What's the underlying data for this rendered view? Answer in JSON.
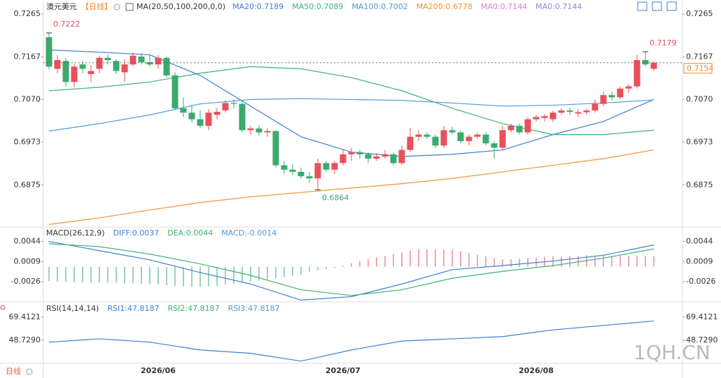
{
  "header": {
    "symbol": "澳元美元",
    "period": "【日线】",
    "indicator": "MA(20,50,100,200,0,0)",
    "extra_legend": [
      {
        "name": "MA0:0.7144",
        "color": "#e07bd0"
      },
      {
        "name": "MA0:0.7144",
        "color": "#9b7fe0"
      }
    ]
  },
  "footer": {
    "period": "日线",
    "watermark": "1QH.CN"
  },
  "xlabels": [
    {
      "index": 13,
      "label": "2026/06"
    },
    {
      "index": 35,
      "label": "2026/07"
    },
    {
      "index": 58,
      "label": "2026/08"
    }
  ],
  "chart_data": [
    {
      "type": "candlestick",
      "up_color": "#e8505b",
      "down_color": "#3aaa6e",
      "ylim": [
        0.7297,
        0.6779
      ],
      "yticks": [
        0.7265,
        0.7167,
        {
          "value": 0.707,
          "label": "0.7070"
        },
        0.6973,
        0.6875
      ],
      "candles": [
        [
          0.7212,
          0.7222,
          0.7138,
          0.7145
        ],
        [
          0.714,
          0.7172,
          0.713,
          0.716
        ],
        [
          0.7158,
          0.7165,
          0.71,
          0.711
        ],
        [
          0.711,
          0.7152,
          0.7098,
          0.7145
        ],
        [
          0.715,
          0.7158,
          0.713,
          0.714
        ],
        [
          0.7128,
          0.7148,
          0.711,
          0.7135
        ],
        [
          0.714,
          0.717,
          0.713,
          0.7165
        ],
        [
          0.7165,
          0.7172,
          0.715,
          0.716
        ],
        [
          0.7158,
          0.7162,
          0.7128,
          0.7135
        ],
        [
          0.7132,
          0.7162,
          0.711,
          0.715
        ],
        [
          0.715,
          0.7178,
          0.7145,
          0.717
        ],
        [
          0.7168,
          0.7175,
          0.715,
          0.7155
        ],
        [
          0.7155,
          0.7172,
          0.7145,
          0.715
        ],
        [
          0.715,
          0.7172,
          0.714,
          0.7165
        ],
        [
          0.7165,
          0.7168,
          0.712,
          0.7125
        ],
        [
          0.7125,
          0.7132,
          0.7045,
          0.705
        ],
        [
          0.705,
          0.7075,
          0.703,
          0.704
        ],
        [
          0.704,
          0.7058,
          0.7018,
          0.7025
        ],
        [
          0.7025,
          0.7045,
          0.7005,
          0.701
        ],
        [
          0.701,
          0.7048,
          0.7,
          0.704
        ],
        [
          0.7035,
          0.7052,
          0.7025,
          0.7042
        ],
        [
          0.7045,
          0.7068,
          0.704,
          0.7062
        ],
        [
          0.7062,
          0.707,
          0.705,
          0.706
        ],
        [
          0.706,
          0.7065,
          0.6995,
          0.7
        ],
        [
          0.7,
          0.701,
          0.699,
          0.7004
        ],
        [
          0.7004,
          0.7012,
          0.6988,
          0.6995
        ],
        [
          0.6995,
          0.7005,
          0.6985,
          0.6998
        ],
        [
          0.6998,
          0.7,
          0.6915,
          0.692
        ],
        [
          0.692,
          0.693,
          0.69,
          0.691
        ],
        [
          0.691,
          0.6922,
          0.6898,
          0.6905
        ],
        [
          0.6905,
          0.6915,
          0.689,
          0.6895
        ],
        [
          0.6895,
          0.6905,
          0.688,
          0.689
        ],
        [
          0.689,
          0.6935,
          0.6864,
          0.6925
        ],
        [
          0.6925,
          0.693,
          0.6905,
          0.691
        ],
        [
          0.691,
          0.693,
          0.69,
          0.6925
        ],
        [
          0.6925,
          0.6955,
          0.692,
          0.6945
        ],
        [
          0.6945,
          0.696,
          0.693,
          0.695
        ],
        [
          0.695,
          0.6955,
          0.6935,
          0.6945
        ],
        [
          0.6945,
          0.695,
          0.6925,
          0.6935
        ],
        [
          0.6935,
          0.6948,
          0.693,
          0.694
        ],
        [
          0.694,
          0.6955,
          0.6935,
          0.6945
        ],
        [
          0.6945,
          0.695,
          0.692,
          0.6925
        ],
        [
          0.6925,
          0.6965,
          0.692,
          0.6955
        ],
        [
          0.6955,
          0.7005,
          0.695,
          0.6985
        ],
        [
          0.6985,
          0.7,
          0.6975,
          0.699
        ],
        [
          0.699,
          0.6995,
          0.698,
          0.6985
        ],
        [
          0.6985,
          0.699,
          0.696,
          0.6965
        ],
        [
          0.6965,
          0.701,
          0.696,
          0.7
        ],
        [
          0.7,
          0.7008,
          0.699,
          0.6995
        ],
        [
          0.6995,
          0.7,
          0.697,
          0.6975
        ],
        [
          0.6975,
          0.699,
          0.6965,
          0.6985
        ],
        [
          0.6985,
          0.6995,
          0.698,
          0.699
        ],
        [
          0.699,
          0.6995,
          0.6965,
          0.697
        ],
        [
          0.697,
          0.6975,
          0.6935,
          0.696
        ],
        [
          0.696,
          0.701,
          0.6955,
          0.7
        ],
        [
          0.7,
          0.7015,
          0.6995,
          0.701
        ],
        [
          0.701,
          0.7015,
          0.699,
          0.6995
        ],
        [
          0.6995,
          0.703,
          0.699,
          0.7025
        ],
        [
          0.7025,
          0.7035,
          0.702,
          0.703
        ],
        [
          0.7028,
          0.7036,
          0.702,
          0.7032
        ],
        [
          0.7025,
          0.7045,
          0.7018,
          0.704
        ],
        [
          0.704,
          0.705,
          0.7035,
          0.7045
        ],
        [
          0.7045,
          0.7052,
          0.7035,
          0.7042
        ],
        [
          0.7038,
          0.7048,
          0.703,
          0.7041
        ],
        [
          0.7041,
          0.705,
          0.7035,
          0.7045
        ],
        [
          0.7045,
          0.707,
          0.704,
          0.706
        ],
        [
          0.706,
          0.7088,
          0.7055,
          0.708
        ],
        [
          0.708,
          0.7088,
          0.7068,
          0.7075
        ],
        [
          0.7075,
          0.71,
          0.707,
          0.7095
        ],
        [
          0.7095,
          0.7105,
          0.7085,
          0.71
        ],
        [
          0.71,
          0.7172,
          0.7095,
          0.716
        ],
        [
          0.716,
          0.7179,
          0.7145,
          0.715
        ],
        [
          0.714,
          0.7158,
          0.7135,
          0.7154
        ]
      ],
      "x": [
        0,
        6,
        12,
        18,
        24,
        30,
        36,
        42,
        48,
        54,
        60,
        66,
        72
      ],
      "series": [
        {
          "name": "MA20:0.7189",
          "color": "#3b7fd4",
          "values": [
            0.7183,
            0.7178,
            0.7172,
            0.7125,
            0.7055,
            0.6985,
            0.695,
            0.694,
            0.6945,
            0.6955,
            0.699,
            0.702,
            0.707
          ]
        },
        {
          "name": "MA50:0.7089",
          "color": "#3cb371",
          "values": [
            0.709,
            0.7098,
            0.711,
            0.713,
            0.7145,
            0.714,
            0.712,
            0.709,
            0.705,
            0.7015,
            0.699,
            0.699,
            0.7
          ]
        },
        {
          "name": "MA100:0.7002",
          "color": "#4a9ad8",
          "values": [
            0.6998,
            0.7015,
            0.7035,
            0.706,
            0.707,
            0.7072,
            0.707,
            0.7068,
            0.7062,
            0.7055,
            0.7057,
            0.7062,
            0.7069
          ]
        },
        {
          "name": "MA200:0.6778",
          "color": "#f0903a",
          "values": [
            0.6785,
            0.68,
            0.6818,
            0.6835,
            0.6848,
            0.6858,
            0.6868,
            0.6878,
            0.689,
            0.6905,
            0.692,
            0.6935,
            0.6955
          ]
        }
      ],
      "high_labels": [
        {
          "index": 0,
          "label": "0.7222"
        },
        {
          "index": 71,
          "label": "0.7179"
        }
      ],
      "low_labels": [
        {
          "index": 32,
          "label": "0.6864"
        }
      ],
      "last_price": 0.7154
    },
    {
      "type": "macd",
      "title": "MACD(26,12,9)",
      "ylim": [
        0.0069,
        -0.0061
      ],
      "yticks": [
        0.0044,
        0.0009,
        -0.0026
      ],
      "histogram": [
        -0.0025,
        -0.0026,
        -0.0026,
        -0.0027,
        -0.0027,
        -0.0028,
        -0.0027,
        -0.0028,
        -0.0028,
        -0.0029,
        -0.0029,
        -0.003,
        -0.003,
        -0.0031,
        -0.0032,
        -0.0033,
        -0.0034,
        -0.0035,
        -0.0035,
        -0.0034,
        -0.0033,
        -0.0031,
        -0.003,
        -0.0028,
        -0.0026,
        -0.0024,
        -0.0022,
        -0.002,
        -0.0018,
        -0.0016,
        -0.0014,
        -0.0009,
        -0.0006,
        -0.0004,
        -0.0002,
        0.0002,
        0.0006,
        0.001,
        0.0013,
        0.0016,
        0.0019,
        0.0022,
        0.0025,
        0.0028,
        0.003,
        0.003,
        0.003,
        0.003,
        0.0029,
        0.0027,
        0.0024,
        0.0021,
        0.0018,
        0.0015,
        0.0013,
        0.0013,
        0.0014,
        0.0015,
        0.0016,
        0.0017,
        0.0018,
        0.0018,
        0.0019,
        0.0019,
        0.002,
        0.002,
        0.002,
        0.0019,
        0.0019,
        0.0019,
        0.0019,
        0.0019,
        0.0018
      ],
      "x": [
        0,
        6,
        12,
        18,
        24,
        30,
        36,
        42,
        48,
        54,
        60,
        66,
        72
      ],
      "series": [
        {
          "name": "DIFF:0.0037",
          "color": "#3b7fd4",
          "values": [
            0.0044,
            0.0028,
            0.0012,
            -0.001,
            -0.003,
            -0.0058,
            -0.0052,
            -0.003,
            -0.0005,
            0.0002,
            0.001,
            0.002,
            0.0038
          ]
        },
        {
          "name": "DEA:0.0044",
          "color": "#3cb371",
          "values": [
            0.004,
            0.0035,
            0.0022,
            0.0005,
            -0.0015,
            -0.004,
            -0.005,
            -0.004,
            -0.002,
            -0.0008,
            0.0002,
            0.0015,
            0.0031
          ]
        }
      ],
      "hist_legend": {
        "name": "MACD:-0.0014",
        "color": "#4a9ad8"
      },
      "up_color": "#e8505b",
      "down_color": "#3aaa6e"
    },
    {
      "type": "rsi",
      "title": "RSI(14,14,14)",
      "ylim": [
        83.2,
        28
      ],
      "yticks": [
        {
          "value": 69.4121,
          "label": "69.4121"
        },
        {
          "value": 48.729,
          "label": "48.7290"
        }
      ],
      "x": [
        0,
        6,
        12,
        18,
        24,
        30,
        36,
        42,
        48,
        54,
        60,
        66,
        72
      ],
      "series": [
        {
          "name": "RSI1:47.8187",
          "color": "#3b7fd4",
          "values": [
            47,
            50,
            47,
            40,
            37,
            30,
            40,
            48,
            50,
            52,
            58,
            62,
            66
          ]
        }
      ],
      "extra_legend": [
        {
          "name": "RSI2:47.8187",
          "color": "#3cb371"
        },
        {
          "name": "RSI3:47.8187",
          "color": "#4a9ad8"
        }
      ]
    }
  ]
}
